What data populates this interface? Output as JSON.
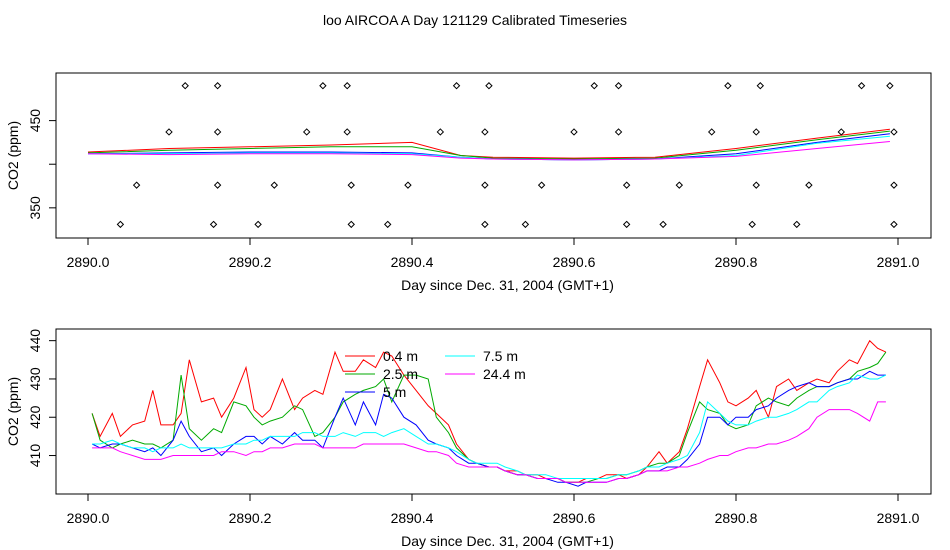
{
  "page": {
    "title": "loo AIRCOA A  Day 121129  Calibrated Timeseries"
  },
  "colors": {
    "series": [
      "#ff0000",
      "#00aa00",
      "#0000ff",
      "#00ffff",
      "#ff00ff"
    ],
    "markers": "#000000"
  },
  "chart_data": [
    {
      "id": "top",
      "type": "line",
      "xlabel": "Day since Dec. 31, 2004 (GMT+1)",
      "ylabel": "CO2 (ppm)",
      "xlim": [
        2890.0,
        2891.0
      ],
      "ylim": [
        320,
        500
      ],
      "xticks": [
        2890.0,
        2890.2,
        2890.4,
        2890.6,
        2890.8,
        2891.0
      ],
      "xtick_labels": [
        "2890.0",
        "2890.2",
        "2890.4",
        "2890.6",
        "2890.8",
        "2891.0"
      ],
      "yticks": [
        350,
        400,
        450
      ],
      "ytick_labels": [
        "350",
        "",
        "450"
      ],
      "x": [
        2890.0,
        2890.1,
        2890.2,
        2890.3,
        2890.4,
        2890.46,
        2890.5,
        2890.6,
        2890.7,
        2890.8,
        2890.9,
        2890.99
      ],
      "series": [
        {
          "values": [
            414,
            418,
            420,
            422,
            425,
            410,
            408,
            407,
            408,
            418,
            430,
            440
          ]
        },
        {
          "values": [
            413,
            416,
            418,
            420,
            420,
            410,
            407,
            406,
            407,
            416,
            428,
            438
          ]
        },
        {
          "values": [
            412,
            413,
            414,
            414,
            413,
            408,
            406,
            405,
            406,
            412,
            425,
            435
          ]
        },
        {
          "values": [
            412,
            412,
            413,
            413,
            412,
            408,
            406,
            405,
            406,
            410,
            424,
            432
          ]
        },
        {
          "values": [
            412,
            411,
            412,
            412,
            411,
            407,
            406,
            405,
            406,
            409,
            418,
            426
          ]
        }
      ],
      "markers": {
        "top_row": {
          "y": 490,
          "x": [
            2890.12,
            2890.16,
            2890.29,
            2890.32,
            2890.455,
            2890.495,
            2890.625,
            2890.655,
            2890.79,
            2890.83,
            2890.955,
            2890.99
          ]
        },
        "middle": {
          "x": [
            2890.1,
            2890.16,
            2890.27,
            2890.32,
            2890.435,
            2890.49,
            2890.6,
            2890.655,
            2890.77,
            2890.825,
            2890.93,
            2890.995
          ],
          "y": [
            437,
            437,
            437,
            437,
            437,
            437,
            437,
            437,
            437,
            437,
            437,
            437
          ]
        },
        "lower_row": {
          "y": 376,
          "x": [
            2890.06,
            2890.16,
            2890.23,
            2890.325,
            2890.395,
            2890.49,
            2890.56,
            2890.665,
            2890.73,
            2890.825,
            2890.89,
            2890.995
          ]
        },
        "bottom_row": {
          "y": 331,
          "x": [
            2890.04,
            2890.155,
            2890.21,
            2890.325,
            2890.37,
            2890.49,
            2890.54,
            2890.665,
            2890.71,
            2890.82,
            2890.875,
            2890.995
          ]
        }
      }
    },
    {
      "id": "bottom",
      "type": "line",
      "xlabel": "Day since Dec. 31, 2004 (GMT+1)",
      "ylabel": "CO2 (ppm)",
      "xlim": [
        2890.0,
        2891.0
      ],
      "ylim": [
        401,
        442
      ],
      "xticks": [
        2890.0,
        2890.2,
        2890.4,
        2890.6,
        2890.8,
        2891.0
      ],
      "xtick_labels": [
        "2890.0",
        "2890.2",
        "2890.4",
        "2890.6",
        "2890.8",
        "2891.0"
      ],
      "yticks": [
        410,
        420,
        430,
        440
      ],
      "ytick_labels": [
        "410",
        "420",
        "430",
        "440"
      ],
      "x": [
        2890.005,
        2890.015,
        2890.03,
        2890.04,
        2890.055,
        2890.07,
        2890.08,
        2890.09,
        2890.105,
        2890.115,
        2890.125,
        2890.14,
        2890.155,
        2890.165,
        2890.18,
        2890.195,
        2890.205,
        2890.215,
        2890.225,
        2890.24,
        2890.255,
        2890.265,
        2890.28,
        2890.29,
        2890.305,
        2890.315,
        2890.33,
        2890.34,
        2890.355,
        2890.365,
        2890.375,
        2890.39,
        2890.405,
        2890.42,
        2890.43,
        2890.445,
        2890.455,
        2890.47,
        2890.48,
        2890.495,
        2890.505,
        2890.515,
        2890.53,
        2890.54,
        2890.555,
        2890.565,
        2890.58,
        2890.59,
        2890.605,
        2890.615,
        2890.63,
        2890.64,
        2890.655,
        2890.665,
        2890.68,
        2890.69,
        2890.705,
        2890.715,
        2890.73,
        2890.74,
        2890.755,
        2890.765,
        2890.78,
        2890.79,
        2890.8,
        2890.815,
        2890.825,
        2890.84,
        2890.85,
        2890.865,
        2890.875,
        2890.89,
        2890.9,
        2890.915,
        2890.925,
        2890.94,
        2890.95,
        2890.965,
        2890.975,
        2890.985
      ],
      "series": [
        {
          "name": "0.4 m",
          "values": [
            421,
            415,
            421,
            415,
            418,
            419,
            427,
            418,
            418,
            421,
            435,
            424,
            425,
            420,
            425,
            433,
            422,
            420,
            422,
            430,
            422,
            425,
            427,
            426,
            437,
            432,
            432,
            435,
            433,
            437,
            436,
            431,
            427,
            423,
            421,
            418,
            413,
            409,
            408,
            407,
            407,
            406,
            406,
            405,
            405,
            404,
            404,
            403,
            403,
            404,
            404,
            405,
            405,
            404,
            405,
            407,
            411,
            408,
            411,
            417,
            428,
            435,
            429,
            424,
            423,
            425,
            427,
            420,
            428,
            430,
            427,
            429,
            430,
            429,
            432,
            435,
            434,
            440,
            438,
            437
          ]
        },
        {
          "name": "2.5 m",
          "values": [
            421,
            414,
            412,
            413,
            414,
            413,
            413,
            412,
            414,
            431,
            417,
            414,
            417,
            416,
            424,
            423,
            420,
            418,
            419,
            420,
            423,
            422,
            415,
            416,
            420,
            424,
            426,
            427,
            428,
            430,
            424,
            431,
            431,
            430,
            420,
            416,
            412,
            409,
            408,
            407,
            407,
            406,
            405,
            405,
            404,
            404,
            404,
            403,
            403,
            403,
            404,
            404,
            405,
            405,
            406,
            407,
            408,
            408,
            410,
            416,
            424,
            422,
            421,
            418,
            417,
            418,
            423,
            425,
            424,
            423,
            425,
            427,
            428,
            428,
            429,
            430,
            432,
            433,
            434,
            437
          ]
        },
        {
          "name": "5 m",
          "values": [
            413,
            412,
            413,
            413,
            412,
            411,
            412,
            410,
            414,
            419,
            415,
            411,
            412,
            410,
            413,
            415,
            415,
            413,
            415,
            413,
            416,
            414,
            414,
            412,
            420,
            425,
            418,
            424,
            418,
            426,
            425,
            420,
            418,
            414,
            413,
            412,
            410,
            408,
            408,
            407,
            407,
            406,
            405,
            405,
            404,
            404,
            403,
            403,
            402,
            403,
            403,
            403,
            404,
            404,
            405,
            406,
            406,
            407,
            407,
            409,
            413,
            420,
            420,
            418,
            420,
            420,
            422,
            423,
            425,
            427,
            428,
            429,
            428,
            428,
            429,
            430,
            430,
            432,
            431,
            431
          ]
        },
        {
          "name": "7.5 m",
          "values": [
            413,
            413,
            414,
            413,
            412,
            412,
            411,
            412,
            412,
            413,
            412,
            412,
            412,
            412,
            413,
            413,
            414,
            414,
            415,
            415,
            415,
            416,
            416,
            415,
            415,
            416,
            415,
            416,
            416,
            415,
            416,
            417,
            415,
            413,
            413,
            412,
            411,
            409,
            408,
            408,
            408,
            407,
            406,
            405,
            405,
            405,
            404,
            404,
            404,
            404,
            404,
            404,
            405,
            405,
            406,
            407,
            407,
            408,
            409,
            410,
            416,
            424,
            421,
            419,
            418,
            418,
            419,
            420,
            420,
            421,
            422,
            424,
            424,
            427,
            428,
            429,
            431,
            430,
            430,
            431
          ]
        },
        {
          "name": "24.4 m",
          "values": [
            412,
            412,
            412,
            411,
            410,
            409,
            409,
            409,
            410,
            410,
            410,
            410,
            410,
            411,
            411,
            410,
            411,
            411,
            412,
            412,
            413,
            413,
            413,
            412,
            412,
            412,
            412,
            413,
            413,
            413,
            413,
            413,
            412,
            411,
            411,
            410,
            408,
            407,
            407,
            407,
            407,
            406,
            405,
            405,
            404,
            404,
            404,
            403,
            403,
            403,
            403,
            403,
            404,
            404,
            405,
            406,
            406,
            406,
            407,
            407,
            408,
            409,
            410,
            410,
            411,
            412,
            412,
            413,
            413,
            414,
            415,
            417,
            420,
            422,
            422,
            422,
            421,
            419,
            424,
            424
          ]
        }
      ],
      "legend": {
        "position": "top-center"
      }
    }
  ]
}
